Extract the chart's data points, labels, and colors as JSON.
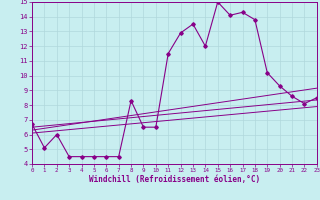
{
  "xlabel": "Windchill (Refroidissement éolien,°C)",
  "xlim": [
    0,
    23
  ],
  "ylim": [
    4,
    15
  ],
  "yticks": [
    4,
    5,
    6,
    7,
    8,
    9,
    10,
    11,
    12,
    13,
    14,
    15
  ],
  "xticks": [
    0,
    1,
    2,
    3,
    4,
    5,
    6,
    7,
    8,
    9,
    10,
    11,
    12,
    13,
    14,
    15,
    16,
    17,
    18,
    19,
    20,
    21,
    22,
    23
  ],
  "bg_color": "#c8eef0",
  "line_color": "#880088",
  "grid_color": "#b0d8dc",
  "series": [
    [
      0,
      6.7
    ],
    [
      1,
      5.1
    ],
    [
      2,
      6.0
    ],
    [
      3,
      4.5
    ],
    [
      4,
      4.5
    ],
    [
      5,
      4.5
    ],
    [
      6,
      4.5
    ],
    [
      7,
      4.5
    ],
    [
      8,
      8.3
    ],
    [
      9,
      6.5
    ],
    [
      10,
      6.5
    ],
    [
      11,
      11.5
    ],
    [
      12,
      12.9
    ],
    [
      13,
      13.5
    ],
    [
      14,
      12.0
    ],
    [
      15,
      15.0
    ],
    [
      16,
      14.1
    ],
    [
      17,
      14.3
    ],
    [
      18,
      13.8
    ],
    [
      19,
      10.2
    ],
    [
      20,
      9.3
    ],
    [
      21,
      8.6
    ],
    [
      22,
      8.1
    ],
    [
      23,
      8.5
    ]
  ],
  "line2": [
    [
      0,
      6.5
    ],
    [
      23,
      8.35
    ]
  ],
  "line3": [
    [
      0,
      6.3
    ],
    [
      23,
      9.15
    ]
  ],
  "line4": [
    [
      0,
      6.1
    ],
    [
      23,
      7.9
    ]
  ]
}
